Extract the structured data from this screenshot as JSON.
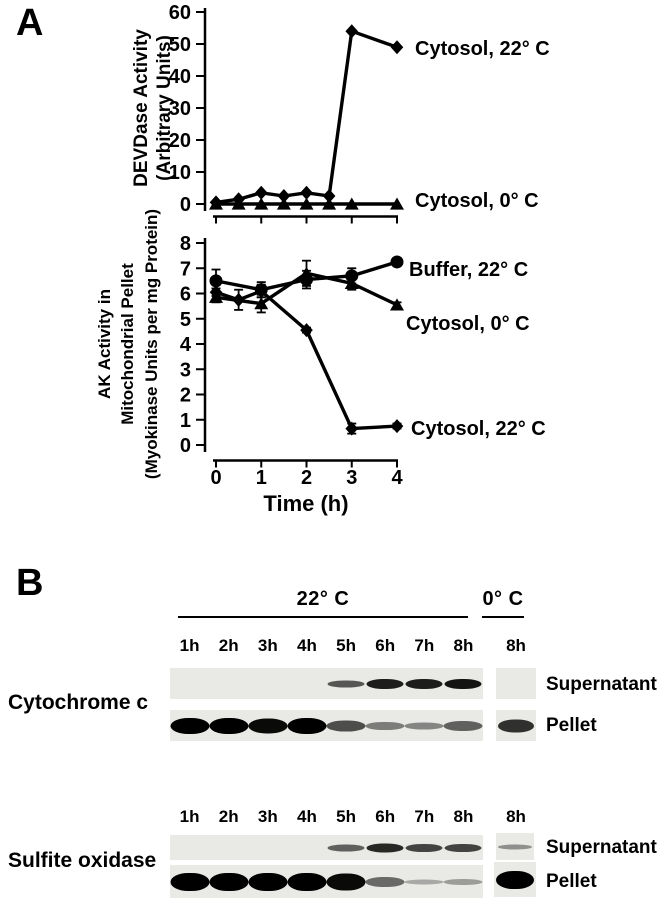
{
  "colors": {
    "ink": "#000000",
    "paper": "#ffffff",
    "blot_strip": "#e9e9e6"
  },
  "panel_a": {
    "label": "A"
  },
  "chart_data": [
    {
      "type": "line",
      "title": "",
      "xlabel": "",
      "ylabel_lines": [
        "DEVDase Activity",
        "(Arbitrary Units)"
      ],
      "xlim": [
        0,
        4.1
      ],
      "ylim": [
        0,
        60
      ],
      "yticks": [
        0,
        10,
        20,
        30,
        40,
        50,
        60
      ],
      "xticks": [
        0,
        1,
        2,
        3,
        4
      ],
      "grid": false,
      "legend_position": "right-of-last-point",
      "series": [
        {
          "name": "Cytosol, 22° C",
          "marker": "diamond",
          "x": [
            0,
            0.5,
            1,
            1.5,
            2,
            2.5,
            3,
            4
          ],
          "y": [
            0.5,
            1.5,
            3.5,
            2.5,
            3.5,
            2.5,
            54,
            49
          ]
        },
        {
          "name": "Cytosol, 0° C",
          "marker": "triangle",
          "x": [
            0,
            0.5,
            1,
            1.5,
            2,
            2.5,
            3,
            4
          ],
          "y": [
            0,
            0,
            0,
            0,
            0,
            0,
            0,
            0
          ]
        }
      ]
    },
    {
      "type": "line",
      "title": "",
      "xlabel": "Time (h)",
      "ylabel_lines": [
        "AK Activity in",
        "Mitochondrial Pellet",
        "(Myokinase Units per mg Protein)"
      ],
      "xlim": [
        0,
        4.1
      ],
      "ylim": [
        0,
        8
      ],
      "yticks": [
        0,
        1,
        2,
        3,
        4,
        5,
        6,
        7,
        8
      ],
      "xticks": [
        0,
        1,
        2,
        3,
        4
      ],
      "grid": false,
      "legend_position": "right-of-last-point",
      "series": [
        {
          "name": "Buffer, 22° C",
          "marker": "circle",
          "x": [
            0,
            1,
            2,
            3,
            4
          ],
          "y": [
            6.5,
            6.15,
            6.55,
            6.7,
            7.25
          ],
          "yerr": [
            0.45,
            0.3,
            0.35,
            0.3,
            0.15
          ]
        },
        {
          "name": "Cytosol, 0° C",
          "marker": "triangle",
          "x": [
            0,
            1,
            2,
            3,
            4
          ],
          "y": [
            5.85,
            5.6,
            6.8,
            6.4,
            5.55
          ],
          "yerr": [
            0.2,
            0.35,
            0.5,
            0.25,
            0.1
          ]
        },
        {
          "name": "Cytosol, 22° C",
          "marker": "diamond",
          "x": [
            0,
            0.5,
            1,
            2,
            3,
            4
          ],
          "y": [
            6.05,
            5.75,
            6.1,
            4.55,
            0.65,
            0.75
          ],
          "yerr": [
            0.15,
            0.4,
            0.25,
            0.1,
            0.2,
            0.1
          ]
        }
      ]
    }
  ],
  "panel_b": {
    "label": "B",
    "temp_22c": "22° C",
    "temp_0c": "0° C",
    "lanes_22c": [
      "1h",
      "2h",
      "3h",
      "4h",
      "5h",
      "6h",
      "7h",
      "8h"
    ],
    "lane_0c": "8h",
    "row_labels": {
      "supernatant": "Supernatant",
      "pellet": "Pellet"
    },
    "blots": [
      {
        "name": "Cytochrome c",
        "supernatant": {
          "lanes_22c": [
            0,
            0,
            0,
            0,
            0.55,
            0.85,
            0.85,
            0.9
          ],
          "lane_0c": 0
        },
        "pellet": {
          "lanes_22c": [
            1,
            1,
            0.95,
            1,
            0.6,
            0.35,
            0.3,
            0.5
          ],
          "lane_0c": 0.75
        }
      },
      {
        "name": "Sulfite oxidase",
        "supernatant": {
          "lanes_22c": [
            0,
            0,
            0,
            0,
            0.5,
            0.8,
            0.65,
            0.65
          ],
          "lane_0c": 0.25
        },
        "pellet": {
          "lanes_22c": [
            1,
            1,
            1,
            1,
            0.95,
            0.45,
            0.12,
            0.18
          ],
          "lane_0c": 1
        }
      }
    ]
  }
}
